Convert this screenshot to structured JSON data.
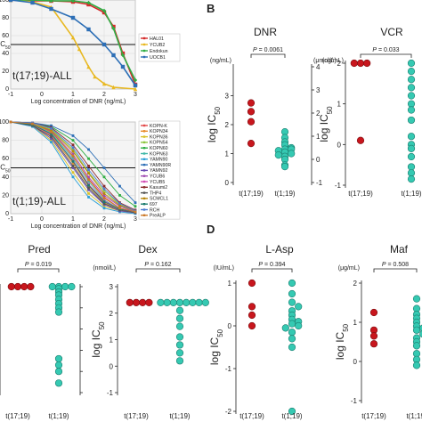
{
  "panel_letters": {
    "b": "B",
    "d": "D"
  },
  "log_axis_label": "log IC",
  "log_axis_sub": "50",
  "group_labels": [
    "t(17;19)",
    "t(1;19)"
  ],
  "colors": {
    "t1719": "#c8161d",
    "t119": "#35c9b2",
    "edge": "#1b7c6e"
  },
  "chart_data": [
    {
      "id": "curves-top",
      "type": "line",
      "xlabel": "Log concentration of DNR (ng/mL)",
      "ylabel": "IC",
      "ylabel_sub": "50",
      "ylim": [
        0,
        100
      ],
      "xlim": [
        -1,
        3
      ],
      "x_ticks": [
        "-1",
        "0",
        "1",
        "2",
        "3"
      ],
      "y_ticks": [
        "0",
        "20",
        "40",
        "60",
        "80",
        "100"
      ],
      "ic50_line": 50,
      "annotation": "t(17;19)-ALL",
      "legend_placement": "right",
      "series": [
        {
          "name": "HAL01",
          "color": "#d42a2a",
          "marker": "square",
          "x": [
            -1,
            -0.3,
            0.3,
            1,
            1.5,
            2,
            2.3,
            2.6,
            3
          ],
          "y": [
            100,
            99,
            99,
            98,
            95,
            86,
            70,
            40,
            5
          ]
        },
        {
          "name": "YCUB2",
          "color": "#e8b821",
          "marker": "triangle",
          "x": [
            -1,
            -0.3,
            0.3,
            1,
            1.2,
            1.5,
            1.7,
            2,
            2.3,
            3
          ],
          "y": [
            100,
            98,
            92,
            58,
            45,
            25,
            14,
            6,
            2,
            0
          ]
        },
        {
          "name": "Endokun",
          "color": "#2fae44",
          "marker": "diamond",
          "x": [
            -1,
            -0.3,
            0.3,
            1,
            1.5,
            2,
            2.3,
            2.6,
            3
          ],
          "y": [
            100,
            100,
            99,
            99,
            97,
            88,
            68,
            38,
            10
          ]
        },
        {
          "name": "UOCB1",
          "color": "#2d6fb6",
          "marker": "square",
          "x": [
            -1,
            -0.3,
            0.3,
            1,
            1.5,
            2,
            2.3,
            2.6,
            3
          ],
          "y": [
            100,
            97,
            90,
            80,
            67,
            50,
            38,
            25,
            4
          ]
        }
      ]
    },
    {
      "id": "curves-bottom",
      "type": "line",
      "xlabel": "Log concentration of DNR (ng/mL)",
      "ylabel": "IC",
      "ylabel_sub": "50",
      "ylim": [
        0,
        100
      ],
      "xlim": [
        -1,
        3
      ],
      "x_ticks": [
        "-1",
        "0",
        "1",
        "2",
        "3"
      ],
      "y_ticks": [
        "0",
        "20",
        "40",
        "60",
        "80",
        "100"
      ],
      "ic50_line": 50,
      "annotation": "t(1;19)-ALL",
      "legend_placement": "right",
      "series": [
        {
          "name": "KOPN-K",
          "color": "#e24a4a",
          "x": [
            -1,
            -0.3,
            0.3,
            1,
            1.5,
            2,
            2.5,
            3
          ],
          "y": [
            100,
            98,
            90,
            62,
            38,
            18,
            6,
            2
          ]
        },
        {
          "name": "KOPN34",
          "color": "#e88a2a",
          "x": [
            -1,
            -0.3,
            0.3,
            1,
            1.5,
            2,
            2.5,
            3
          ],
          "y": [
            100,
            97,
            85,
            55,
            30,
            12,
            4,
            1
          ]
        },
        {
          "name": "KOPN36",
          "color": "#d9c22a",
          "x": [
            -1,
            -0.3,
            0.3,
            1,
            1.5,
            2,
            2.5,
            3
          ],
          "y": [
            100,
            96,
            80,
            45,
            22,
            8,
            3,
            1
          ]
        },
        {
          "name": "KOPN54",
          "color": "#8cc63f",
          "x": [
            -1,
            -0.3,
            0.3,
            1,
            1.5,
            2,
            2.5,
            3
          ],
          "y": [
            100,
            98,
            92,
            70,
            45,
            25,
            10,
            3
          ]
        },
        {
          "name": "KOPN60",
          "color": "#2fae44",
          "x": [
            -1,
            -0.3,
            0.3,
            1,
            1.5,
            2,
            2.5,
            3
          ],
          "y": [
            100,
            99,
            95,
            80,
            60,
            40,
            20,
            8
          ]
        },
        {
          "name": "KOPN63",
          "color": "#3fb8a8",
          "x": [
            -1,
            -0.3,
            0.3,
            1,
            1.5,
            2,
            2.5,
            3
          ],
          "y": [
            100,
            97,
            88,
            60,
            35,
            15,
            5,
            2
          ]
        },
        {
          "name": "YAMN90",
          "color": "#2d9fd8",
          "x": [
            -1,
            -0.3,
            0.3,
            1,
            1.5,
            2,
            2.5,
            3
          ],
          "y": [
            100,
            95,
            78,
            40,
            18,
            6,
            2,
            0
          ]
        },
        {
          "name": "YAMN90R",
          "color": "#2d6fb6",
          "x": [
            -1,
            -0.3,
            0.3,
            1,
            1.5,
            2,
            2.5,
            3
          ],
          "y": [
            100,
            99,
            96,
            85,
            70,
            50,
            30,
            12
          ]
        },
        {
          "name": "YAMN92",
          "color": "#6a4cb3",
          "x": [
            -1,
            -0.3,
            0.3,
            1,
            1.5,
            2,
            2.5,
            3
          ],
          "y": [
            100,
            96,
            82,
            50,
            26,
            10,
            3,
            1
          ]
        },
        {
          "name": "YCUB6",
          "color": "#a04cb3",
          "x": [
            -1,
            -0.3,
            0.3,
            1,
            1.5,
            2,
            2.5,
            3
          ],
          "y": [
            100,
            98,
            90,
            65,
            40,
            20,
            8,
            2
          ]
        },
        {
          "name": "YCUB5",
          "color": "#d24cb3",
          "x": [
            -1,
            -0.3,
            0.3,
            1,
            1.5,
            2,
            2.5,
            3
          ],
          "y": [
            100,
            97,
            86,
            58,
            32,
            14,
            5,
            1
          ]
        },
        {
          "name": "Kasumi2",
          "color": "#8a2a2a",
          "x": [
            -1,
            -0.3,
            0.3,
            1,
            1.5,
            2,
            2.5,
            3
          ],
          "y": [
            100,
            99,
            94,
            75,
            52,
            30,
            12,
            4
          ]
        },
        {
          "name": "THP4",
          "color": "#555555",
          "x": [
            -1,
            -0.3,
            0.3,
            1,
            1.5,
            2,
            2.5,
            3
          ],
          "y": [
            100,
            96,
            84,
            52,
            28,
            11,
            4,
            1
          ]
        },
        {
          "name": "SCMCL1",
          "color": "#b8860b",
          "x": [
            -1,
            -0.3,
            0.3,
            1,
            1.5,
            2,
            2.5,
            3
          ],
          "y": [
            100,
            98,
            91,
            68,
            44,
            22,
            9,
            3
          ]
        },
        {
          "name": "697",
          "color": "#1b7c6e",
          "x": [
            -1,
            -0.3,
            0.3,
            1,
            1.5,
            2,
            2.5,
            3
          ],
          "y": [
            100,
            97,
            87,
            57,
            31,
            13,
            5,
            2
          ]
        },
        {
          "name": "RCH",
          "color": "#4c7cd2",
          "x": [
            -1,
            -0.3,
            0.3,
            1,
            1.5,
            2,
            2.5,
            3
          ],
          "y": [
            100,
            99,
            93,
            72,
            48,
            27,
            11,
            3
          ]
        },
        {
          "name": "PreALP",
          "color": "#cc7a2a",
          "x": [
            -1,
            -0.3,
            0.3,
            1,
            1.5,
            2,
            2.5,
            3
          ],
          "y": [
            100,
            98,
            89,
            63,
            37,
            17,
            6,
            2
          ]
        }
      ]
    },
    {
      "id": "dot-dnr",
      "type": "scatter",
      "title": "DNR",
      "p_label": "P = 0.0061",
      "unit_left": "(ng/mL)",
      "unit_right": "(μmol/L)",
      "ylim": [
        0,
        4
      ],
      "y_ticks": [
        "0",
        "1",
        "2",
        "3"
      ],
      "y_right_ticks": [
        "-1",
        "0",
        "1",
        "2",
        "3",
        "4"
      ],
      "categories": [
        "t(17;19)",
        "t(1;19)"
      ],
      "series": [
        {
          "name": "t(17;19)",
          "values": [
            2.75,
            2.45,
            2.1,
            1.35
          ]
        },
        {
          "name": "t(1;19)",
          "values": [
            1.75,
            1.55,
            1.4,
            1.3,
            1.2,
            1.15,
            1.15,
            1.1,
            1.05,
            1.0,
            0.95,
            0.9,
            0.8,
            0.6,
            0.55
          ]
        }
      ]
    },
    {
      "id": "dot-vcr",
      "type": "scatter",
      "title": "VCR",
      "p_label": "P = 0.033",
      "unit_left": "(ng/mL)",
      "ylim": [
        -1,
        2
      ],
      "y_ticks": [
        "-1",
        "0",
        "1",
        "2"
      ],
      "categories": [
        "t(17;19)",
        "t(1;19)"
      ],
      "series": [
        {
          "name": "t(17;19)",
          "values": [
            2,
            2,
            2,
            0.1
          ]
        },
        {
          "name": "t(1;19)",
          "values": [
            2.0,
            1.8,
            1.6,
            1.4,
            1.2,
            1.0,
            0.85,
            0.6,
            0.2,
            0.0,
            -0.1,
            -0.3,
            -0.55,
            -0.7,
            -0.85
          ]
        }
      ]
    },
    {
      "id": "dot-pred",
      "type": "scatter",
      "title": "Pred",
      "p_label": "P = 0.019",
      "unit_left": "L)",
      "ylim": [
        -2,
        3
      ],
      "y_ticks": [
        "-2",
        "-1",
        "0",
        "1",
        "2",
        "3"
      ],
      "categories": [
        "t(17;19)",
        "t(1;19)"
      ],
      "series": [
        {
          "name": "t(17;19)",
          "values": [
            3,
            3,
            3,
            3
          ]
        },
        {
          "name": "t(1;19)",
          "values": [
            3,
            3,
            3,
            3,
            2.9,
            2.75,
            2.6,
            2.4,
            2.2,
            2.0,
            1.8,
            -0.4,
            -0.7,
            -1.0,
            -1.55
          ]
        }
      ]
    },
    {
      "id": "dot-dex",
      "type": "scatter",
      "title": "Dex",
      "p_label": "P = 0.162",
      "unit_left": "(nmol/L)",
      "ylim": [
        -1,
        3
      ],
      "y_ticks": [
        "-1",
        "0",
        "1",
        "2",
        "3"
      ],
      "categories": [
        "t(17;19)",
        "t(1;19)"
      ],
      "series": [
        {
          "name": "t(17;19)",
          "values": [
            2.4,
            2.4,
            2.4,
            2.4
          ]
        },
        {
          "name": "t(1;19)",
          "values": [
            2.4,
            2.4,
            2.4,
            2.4,
            2.4,
            2.4,
            2.4,
            2.4,
            2.1,
            1.8,
            1.5,
            1.1,
            0.8,
            0.5,
            0.2
          ]
        }
      ]
    },
    {
      "id": "dot-lasp",
      "type": "scatter",
      "title": "L-Asp",
      "p_label": "P = 0.394",
      "unit_left": "(IU/mL)",
      "ylim": [
        -2,
        1
      ],
      "y_ticks": [
        "-2",
        "-1",
        "0",
        "1"
      ],
      "categories": [
        "t(17;19)",
        "t(1;19)"
      ],
      "series": [
        {
          "name": "t(17;19)",
          "values": [
            1.0,
            0.45,
            0.25,
            0.0
          ]
        },
        {
          "name": "t(1;19)",
          "values": [
            1.0,
            0.75,
            0.55,
            0.45,
            0.35,
            0.25,
            0.15,
            0.1,
            0.05,
            0.0,
            -0.05,
            -0.15,
            -0.3,
            -0.5,
            -2.0
          ]
        }
      ]
    },
    {
      "id": "dot-maf",
      "type": "scatter",
      "title": "Maf",
      "p_label": "P = 0.508",
      "unit_left": "(μg/mL)",
      "ylim": [
        -1,
        2
      ],
      "y_ticks": [
        "-1",
        "0",
        "1",
        "2"
      ],
      "categories": [
        "t(17;19)",
        "t(1;19)"
      ],
      "series": [
        {
          "name": "t(17;19)",
          "values": [
            1.25,
            0.8,
            0.65,
            0.45
          ]
        },
        {
          "name": "t(1;19)",
          "values": [
            1.6,
            1.35,
            1.2,
            1.1,
            1.0,
            0.9,
            0.85,
            0.8,
            0.7,
            0.6,
            0.5,
            0.4,
            0.2,
            0.05,
            -0.1
          ]
        }
      ]
    }
  ]
}
